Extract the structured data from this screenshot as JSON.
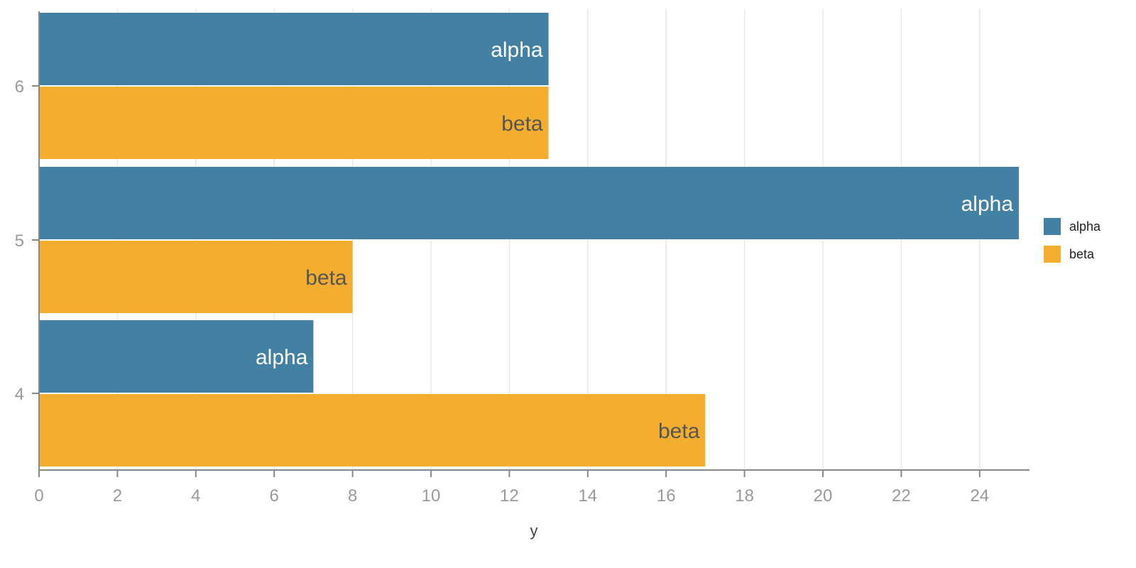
{
  "chart_data": {
    "type": "bar",
    "orientation": "horizontal",
    "categories": [
      "6",
      "5",
      "4"
    ],
    "series": [
      {
        "name": "alpha",
        "color": "#4281A4",
        "values": [
          13,
          25,
          7
        ],
        "label_color": "#ffffff"
      },
      {
        "name": "beta",
        "color": "#F4AE2F",
        "values": [
          13,
          8,
          17
        ],
        "label_color": "#555555"
      }
    ],
    "xlabel": "y",
    "ylabel": "",
    "xlim": [
      0,
      25.3
    ],
    "xticks": [
      0,
      2,
      4,
      6,
      8,
      10,
      12,
      14,
      16,
      18,
      20,
      22,
      24
    ],
    "grid": true,
    "legend_placement": "right",
    "data_labels": "series-name"
  }
}
